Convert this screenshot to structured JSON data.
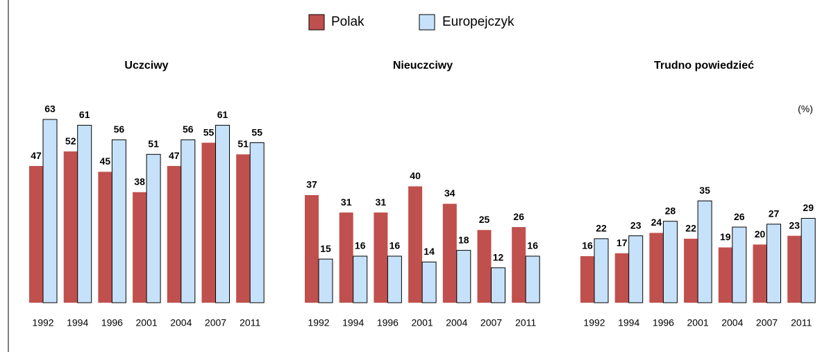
{
  "unit": "(%)",
  "chart_data": [
    {
      "type": "bar",
      "title": "Uczciwy",
      "categories": [
        "1992",
        "1994",
        "1996",
        "2001",
        "2004",
        "2007",
        "2011"
      ],
      "series": [
        {
          "name": "Polak",
          "color": "#c0504d",
          "values": [
            47,
            52,
            45,
            38,
            47,
            55,
            51
          ]
        },
        {
          "name": "Europejczyk",
          "color": "#c6e2fa",
          "values": [
            63,
            61,
            56,
            51,
            56,
            61,
            55
          ]
        }
      ]
    },
    {
      "type": "bar",
      "title": "Nieuczciwy",
      "categories": [
        "1992",
        "1994",
        "1996",
        "2001",
        "2004",
        "2007",
        "2011"
      ],
      "series": [
        {
          "color": "#c0504d",
          "values": [
            37,
            31,
            31,
            40,
            34,
            25,
            26
          ]
        },
        {
          "color": "#c6e2fa",
          "values": [
            15,
            16,
            16,
            14,
            18,
            12,
            16
          ]
        }
      ]
    },
    {
      "type": "bar",
      "title": "Trudno powiedzieć",
      "categories": [
        "1992",
        "1994",
        "1996",
        "2001",
        "2004",
        "2007",
        "2011"
      ],
      "series": [
        {
          "color": "#c0504d",
          "values": [
            16,
            17,
            24,
            22,
            19,
            20,
            23
          ]
        },
        {
          "color": "#c6e2fa",
          "values": [
            22,
            23,
            28,
            35,
            26,
            27,
            29
          ]
        }
      ]
    }
  ]
}
